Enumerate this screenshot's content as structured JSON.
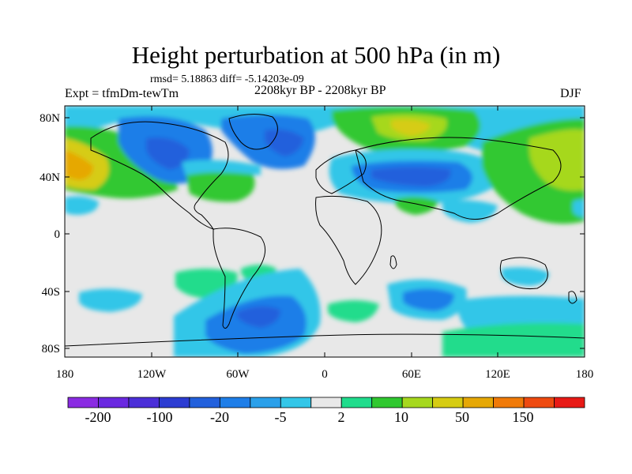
{
  "header": {
    "title": "Height perturbation at 500 hPa (in m)",
    "stats": "rmsd= 5.18863 diff= -5.14203e-09",
    "expt": "Expt = tfmDm-tewTm",
    "period": "2208kyr BP - 2208kyr BP",
    "season": "DJF"
  },
  "axes": {
    "lat_labels": [
      "80N",
      "40N",
      "0",
      "40S",
      "80S"
    ],
    "lon_labels": [
      "180",
      "120W",
      "60W",
      "0",
      "60E",
      "120E",
      "180"
    ]
  },
  "colorbar": {
    "colors": [
      "#8a2be2",
      "#6a28e0",
      "#4b2fd8",
      "#2c3cd2",
      "#2260dc",
      "#1e7ee8",
      "#2aa0ea",
      "#33c6e8",
      "#e8e8e8",
      "#20dc8c",
      "#30c830",
      "#a6d81e",
      "#d6cc12",
      "#e6a806",
      "#f07a08",
      "#ee4a10",
      "#e81a16"
    ],
    "labels": [
      "-200",
      "-100",
      "-20",
      "-5",
      "2",
      "10",
      "50",
      "150"
    ]
  },
  "legend_colors": {
    "neutral": "#e8e8e8",
    "land_outline": "#000000"
  }
}
